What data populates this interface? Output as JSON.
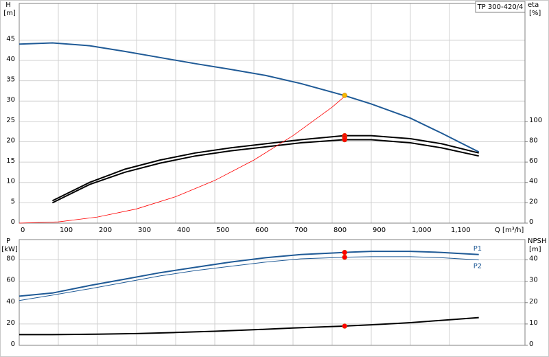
{
  "chart_data": [
    {
      "type": "line",
      "title": "TP 300-420/4",
      "ylabel": "H",
      "yunit": "[m]",
      "y2label": "eta",
      "y2unit": "[%]",
      "xlabel": "Q [m³/h]",
      "xlim": [
        0,
        1293
      ],
      "xticks": [
        0,
        100,
        200,
        300,
        400,
        500,
        600,
        700,
        800,
        900,
        {
          "value": 1000,
          "label": "1,000"
        },
        {
          "value": 1100,
          "label": "1,100"
        }
      ],
      "ylim": [
        0,
        54
      ],
      "yticks": [
        0,
        5,
        10,
        15,
        20,
        25,
        30,
        35,
        40,
        45
      ],
      "y2lim": [
        0,
        216
      ],
      "y2ticks": [
        0,
        20,
        40,
        60,
        80,
        100
      ],
      "grid": true,
      "show_xtick_labels": true,
      "series": [
        {
          "color": "#1f5a96",
          "width": 2,
          "x": [
            0,
            85,
            180,
            270,
            360,
            450,
            540,
            630,
            720,
            830,
            900,
            1000,
            1080,
            1175
          ],
          "values": [
            44,
            44.3,
            43.6,
            42.2,
            40.7,
            39.2,
            37.8,
            36.3,
            34.3,
            31.4,
            29.3,
            25.8,
            22.1,
            17.5
          ]
        },
        {
          "color": "#000000",
          "width": 2,
          "axis": "y2",
          "x": [
            85,
            180,
            270,
            360,
            450,
            540,
            630,
            720,
            830,
            900,
            1000,
            1080,
            1175
          ],
          "values": [
            22,
            40,
            53,
            62,
            69,
            74,
            78,
            82,
            86,
            86,
            83,
            78,
            69
          ]
        },
        {
          "color": "#000000",
          "width": 2,
          "axis": "y2",
          "x": [
            85,
            180,
            270,
            360,
            450,
            540,
            630,
            720,
            830,
            900,
            1000,
            1080,
            1175
          ],
          "values": [
            20,
            38,
            50,
            59,
            66,
            71,
            75,
            79,
            82,
            82,
            79,
            74,
            66
          ]
        },
        {
          "color": "#ff0000",
          "width": 0.8,
          "x": [
            0,
            100,
            200,
            300,
            400,
            500,
            600,
            700,
            800,
            835
          ],
          "values": [
            0,
            0.3,
            1.5,
            3.5,
            6.5,
            10.5,
            15.5,
            21.5,
            28.5,
            31.4
          ]
        }
      ],
      "markers": [
        {
          "x": 832,
          "y": 31.4,
          "color": "#f5b800"
        },
        {
          "x": 832,
          "y": 86,
          "axis": "y2",
          "color": "#ff0000"
        },
        {
          "x": 832,
          "y": 84,
          "axis": "y2",
          "color": "#ff0000"
        },
        {
          "x": 832,
          "y": 82,
          "axis": "y2",
          "color": "#ff0000"
        }
      ]
    },
    {
      "type": "line",
      "ylabel": "P",
      "yunit": "[kW]",
      "y2label": "NPSH",
      "y2unit": "[m]",
      "xlim": [
        0,
        1293
      ],
      "xticks": [
        0,
        100,
        200,
        300,
        400,
        500,
        600,
        700,
        800,
        900,
        1000,
        1100
      ],
      "ylim": [
        0,
        99
      ],
      "yticks": [
        0,
        20,
        40,
        60,
        80
      ],
      "y2lim": [
        0,
        49.5
      ],
      "y2ticks": [
        0,
        10,
        20,
        30,
        40
      ],
      "grid": true,
      "show_xtick_labels": false,
      "series": [
        {
          "name": "P1",
          "color": "#1f5a96",
          "width": 2,
          "x": [
            0,
            85,
            180,
            270,
            360,
            450,
            540,
            630,
            720,
            830,
            900,
            1000,
            1080,
            1175
          ],
          "values": [
            46,
            49,
            56,
            62,
            68,
            73,
            78,
            82,
            85,
            87,
            88,
            88,
            87,
            85
          ]
        },
        {
          "name": "P2",
          "color": "#1f5a96",
          "width": 1,
          "x": [
            0,
            85,
            180,
            270,
            360,
            450,
            540,
            630,
            720,
            830,
            900,
            1000,
            1080,
            1175
          ],
          "values": [
            42,
            47,
            53,
            59,
            65,
            70,
            74,
            78,
            81,
            82.5,
            83,
            83,
            82,
            80
          ]
        },
        {
          "color": "#000000",
          "width": 2,
          "axis": "y2",
          "x": [
            0,
            85,
            200,
            300,
            400,
            500,
            600,
            700,
            830,
            900,
            1000,
            1175
          ],
          "values": [
            5,
            5,
            5.2,
            5.5,
            6,
            6.6,
            7.3,
            8.1,
            9,
            9.6,
            10.6,
            13
          ]
        }
      ],
      "markers": [
        {
          "x": 832,
          "y": 87,
          "color": "#ff0000"
        },
        {
          "x": 832,
          "y": 82.5,
          "color": "#ff0000"
        },
        {
          "x": 832,
          "y": 9,
          "axis": "y2",
          "color": "#ff0000"
        }
      ]
    }
  ]
}
